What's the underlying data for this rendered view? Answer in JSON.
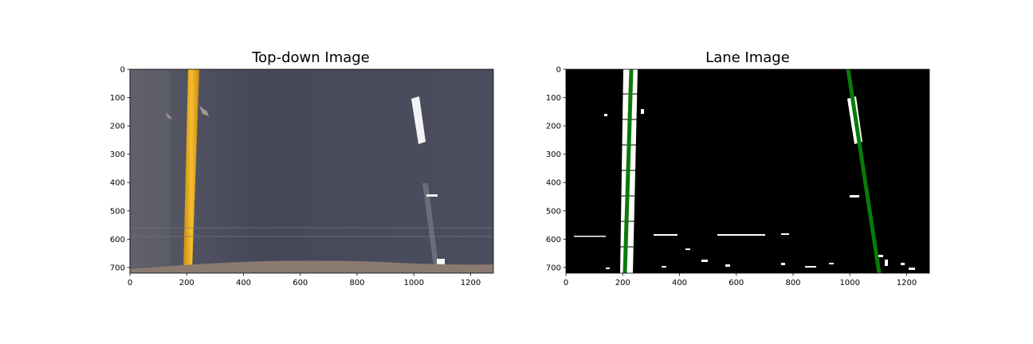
{
  "figure": {
    "panels": [
      {
        "title": "Top-down Image"
      },
      {
        "title": "Lane Image"
      }
    ],
    "x_ticks": [
      "0",
      "200",
      "400",
      "600",
      "800",
      "1000",
      "1200"
    ],
    "y_ticks": [
      "0",
      "100",
      "200",
      "300",
      "400",
      "500",
      "600",
      "700"
    ]
  },
  "colors": {
    "road": "#4a4d5a",
    "yellow_line": "#f0b020",
    "white_marking": "#f5f5f5",
    "ground": "#8a7a70",
    "lane_fit": "#0a7a0a",
    "binary_bg": "#000000"
  }
}
